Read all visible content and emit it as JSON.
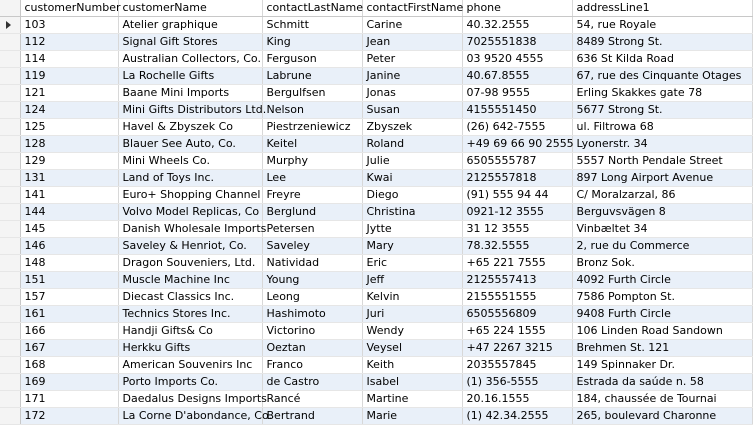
{
  "table": {
    "columns": [
      "customerNumber",
      "customerName",
      "contactLastName",
      "contactFirstName",
      "phone",
      "addressLine1"
    ],
    "rows": [
      [
        "103",
        "Atelier graphique",
        "Schmitt",
        "Carine",
        "40.32.2555",
        "54, rue Royale"
      ],
      [
        "112",
        "Signal Gift Stores",
        "King",
        "Jean",
        "7025551838",
        "8489 Strong St."
      ],
      [
        "114",
        "Australian Collectors, Co.",
        "Ferguson",
        "Peter",
        "03 9520 4555",
        "636 St Kilda Road"
      ],
      [
        "119",
        "La Rochelle Gifts",
        "Labrune",
        "Janine",
        "40.67.8555",
        "67, rue des Cinquante Otages"
      ],
      [
        "121",
        "Baane Mini Imports",
        "Bergulfsen",
        "Jonas",
        "07-98 9555",
        "Erling Skakkes gate 78"
      ],
      [
        "124",
        "Mini Gifts Distributors Ltd.",
        "Nelson",
        "Susan",
        "4155551450",
        "5677 Strong St."
      ],
      [
        "125",
        "Havel & Zbyszek Co",
        "Piestrzeniewicz",
        "Zbyszek",
        "(26) 642-7555",
        "ul. Filtrowa 68"
      ],
      [
        "128",
        "Blauer See Auto, Co.",
        "Keitel",
        "Roland",
        "+49 69 66 90 2555",
        "Lyonerstr. 34"
      ],
      [
        "129",
        "Mini Wheels Co.",
        "Murphy",
        "Julie",
        "6505555787",
        "5557 North Pendale Street"
      ],
      [
        "131",
        "Land of Toys Inc.",
        "Lee",
        "Kwai",
        "2125557818",
        "897 Long Airport Avenue"
      ],
      [
        "141",
        "Euro+ Shopping Channel",
        "Freyre",
        "Diego",
        "(91) 555 94 44",
        "C/ Moralzarzal, 86"
      ],
      [
        "144",
        "Volvo Model Replicas, Co",
        "Berglund",
        "Christina",
        "0921-12 3555",
        "Berguvsvägen  8"
      ],
      [
        "145",
        "Danish Wholesale Imports",
        "Petersen",
        "Jytte",
        "31 12 3555",
        "Vinbæltet 34"
      ],
      [
        "146",
        "Saveley & Henriot, Co.",
        "Saveley",
        "Mary",
        "78.32.5555",
        "2, rue du Commerce"
      ],
      [
        "148",
        "Dragon Souveniers, Ltd.",
        "Natividad",
        "Eric",
        "+65 221 7555",
        "Bronz Sok."
      ],
      [
        "151",
        "Muscle Machine Inc",
        "Young",
        "Jeff",
        "2125557413",
        "4092 Furth Circle"
      ],
      [
        "157",
        "Diecast Classics Inc.",
        "Leong",
        "Kelvin",
        "2155551555",
        "7586 Pompton St."
      ],
      [
        "161",
        "Technics Stores Inc.",
        "Hashimoto",
        "Juri",
        "6505556809",
        "9408 Furth Circle"
      ],
      [
        "166",
        "Handji Gifts& Co",
        "Victorino",
        "Wendy",
        "+65 224 1555",
        "106 Linden Road Sandown"
      ],
      [
        "167",
        "Herkku Gifts",
        "Oeztan",
        "Veysel",
        "+47 2267 3215",
        "Brehmen St. 121"
      ],
      [
        "168",
        "American Souvenirs Inc",
        "Franco",
        "Keith",
        "2035557845",
        "149 Spinnaker Dr."
      ],
      [
        "169",
        "Porto Imports Co.",
        "de Castro",
        "Isabel",
        "(1) 356-5555",
        "Estrada da saúde n. 58"
      ],
      [
        "171",
        "Daedalus Designs Imports",
        "Rancé",
        "Martine",
        "20.16.1555",
        "184, chaussée de Tournai"
      ],
      [
        "172",
        "La Corne D'abondance, Co.",
        "Bertrand",
        "Marie",
        "(1) 42.34.2555",
        "265, boulevard Charonne"
      ]
    ]
  }
}
